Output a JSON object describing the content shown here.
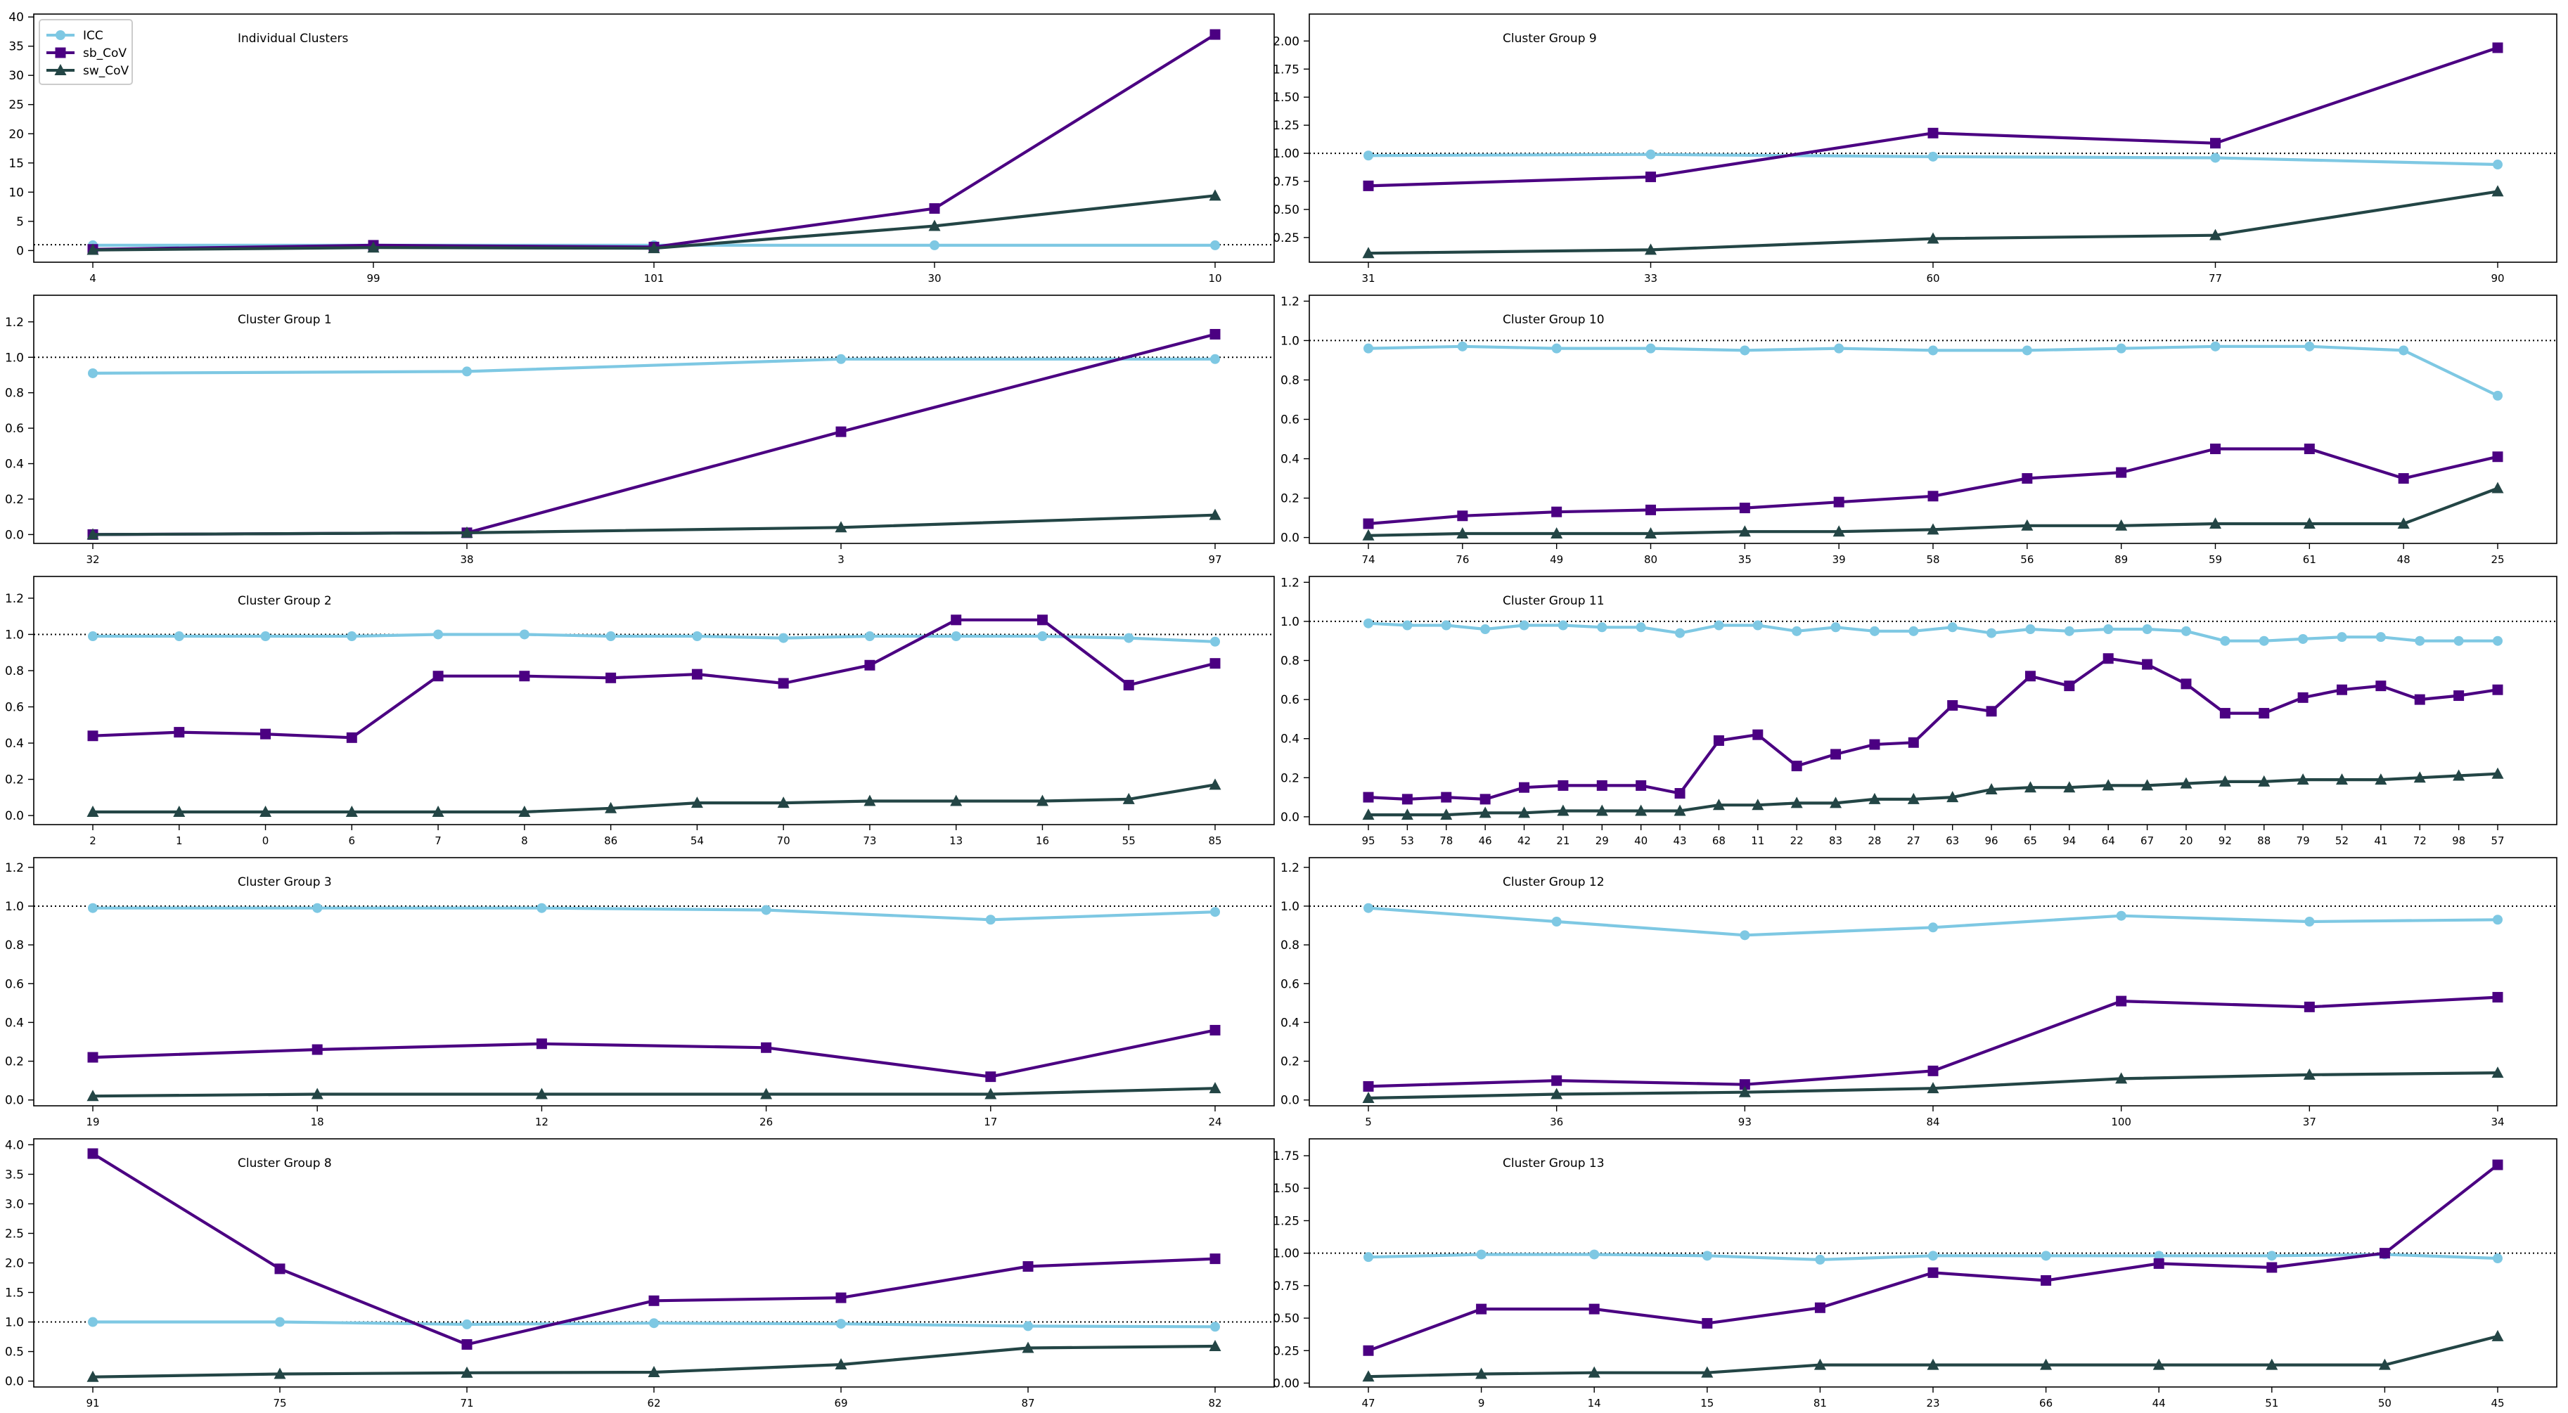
{
  "colors": {
    "ICC": "#7ec8e3",
    "sb_CoV": "#4b0082",
    "sw_CoV": "#234545",
    "axis": "#000000",
    "ref_line": "#000000"
  },
  "legend": [
    {
      "name": "ICC",
      "marker": "circle"
    },
    {
      "name": "sb_CoV",
      "marker": "square"
    },
    {
      "name": "sw_CoV",
      "marker": "triangle"
    }
  ],
  "chart_data": [
    {
      "type": "line",
      "title": "Individual Clusters",
      "reference_line": 1.0,
      "categories": [
        "4",
        "99",
        "101",
        "30",
        "10"
      ],
      "ylim": [
        -2.0,
        40.5
      ],
      "yticks": [
        "0",
        "5",
        "10",
        "15",
        "20",
        "25",
        "30",
        "35",
        "40"
      ],
      "ytick_values": [
        0,
        5,
        10,
        15,
        20,
        25,
        30,
        35,
        40
      ],
      "series": [
        {
          "name": "ICC",
          "values": [
            0.9,
            0.9,
            0.9,
            0.9,
            0.9
          ]
        },
        {
          "name": "sb_CoV",
          "values": [
            0.2,
            0.9,
            0.6,
            7.2,
            37.0
          ]
        },
        {
          "name": "sw_CoV",
          "values": [
            0.1,
            0.5,
            0.4,
            4.2,
            9.4
          ]
        }
      ]
    },
    {
      "type": "line",
      "title": "Cluster Group 9",
      "reference_line": 1.0,
      "categories": [
        "31",
        "33",
        "60",
        "77",
        "90"
      ],
      "ylim": [
        0.03,
        2.24
      ],
      "yticks": [
        "0.25",
        "0.50",
        "0.75",
        "1.00",
        "1.25",
        "1.50",
        "1.75",
        "2.00"
      ],
      "ytick_values": [
        0.25,
        0.5,
        0.75,
        1.0,
        1.25,
        1.5,
        1.75,
        2.0
      ],
      "series": [
        {
          "name": "ICC",
          "values": [
            0.98,
            0.99,
            0.97,
            0.96,
            0.9
          ]
        },
        {
          "name": "sb_CoV",
          "values": [
            0.71,
            0.79,
            1.18,
            1.09,
            1.94
          ]
        },
        {
          "name": "sw_CoV",
          "values": [
            0.11,
            0.14,
            0.24,
            0.27,
            0.66
          ]
        }
      ]
    },
    {
      "type": "line",
      "title": "Cluster Group 1",
      "reference_line": 1.0,
      "categories": [
        "32",
        "38",
        "3",
        "97"
      ],
      "ylim": [
        -0.05,
        1.35
      ],
      "yticks": [
        "0.0",
        "0.2",
        "0.4",
        "0.6",
        "0.8",
        "1.0",
        "1.2"
      ],
      "ytick_values": [
        0,
        0.2,
        0.4,
        0.6,
        0.8,
        1.0,
        1.2
      ],
      "series": [
        {
          "name": "ICC",
          "values": [
            0.91,
            0.92,
            0.99,
            0.99
          ]
        },
        {
          "name": "sb_CoV",
          "values": [
            0.0,
            0.01,
            0.58,
            1.13
          ]
        },
        {
          "name": "sw_CoV",
          "values": [
            0.0,
            0.01,
            0.04,
            0.11
          ]
        }
      ]
    },
    {
      "type": "line",
      "title": "Cluster Group 10",
      "reference_line": 1.0,
      "categories": [
        "74",
        "76",
        "49",
        "80",
        "35",
        "39",
        "58",
        "56",
        "89",
        "59",
        "61",
        "48",
        "25"
      ],
      "ylim": [
        -0.03,
        1.23
      ],
      "yticks": [
        "0.0",
        "0.2",
        "0.4",
        "0.6",
        "0.8",
        "1.0",
        "1.2"
      ],
      "ytick_values": [
        0,
        0.2,
        0.4,
        0.6,
        0.8,
        1.0,
        1.2
      ],
      "series": [
        {
          "name": "ICC",
          "values": [
            0.96,
            0.97,
            0.96,
            0.96,
            0.95,
            0.96,
            0.95,
            0.95,
            0.96,
            0.97,
            0.97,
            0.95,
            0.72
          ]
        },
        {
          "name": "sb_CoV",
          "values": [
            0.07,
            0.11,
            0.13,
            0.14,
            0.15,
            0.18,
            0.21,
            0.3,
            0.33,
            0.45,
            0.45,
            0.3,
            0.41
          ]
        },
        {
          "name": "sw_CoV",
          "values": [
            0.01,
            0.02,
            0.02,
            0.02,
            0.03,
            0.03,
            0.04,
            0.06,
            0.06,
            0.07,
            0.07,
            0.07,
            0.25
          ]
        }
      ]
    },
    {
      "type": "line",
      "title": "Cluster Group 2",
      "reference_line": 1.0,
      "categories": [
        "2",
        "1",
        "0",
        "6",
        "7",
        "8",
        "86",
        "54",
        "70",
        "73",
        "13",
        "16",
        "55",
        "85"
      ],
      "ylim": [
        -0.05,
        1.32
      ],
      "yticks": [
        "0.0",
        "0.2",
        "0.4",
        "0.6",
        "0.8",
        "1.0",
        "1.2"
      ],
      "ytick_values": [
        0,
        0.2,
        0.4,
        0.6,
        0.8,
        1.0,
        1.2
      ],
      "series": [
        {
          "name": "ICC",
          "values": [
            0.99,
            0.99,
            0.99,
            0.99,
            1.0,
            1.0,
            0.99,
            0.99,
            0.98,
            0.99,
            0.99,
            0.99,
            0.98,
            0.96
          ]
        },
        {
          "name": "sb_CoV",
          "values": [
            0.44,
            0.46,
            0.45,
            0.43,
            0.77,
            0.77,
            0.76,
            0.78,
            0.73,
            0.83,
            1.08,
            1.08,
            0.72,
            0.84
          ]
        },
        {
          "name": "sw_CoV",
          "values": [
            0.02,
            0.02,
            0.02,
            0.02,
            0.02,
            0.02,
            0.04,
            0.07,
            0.07,
            0.08,
            0.08,
            0.08,
            0.09,
            0.17
          ]
        }
      ]
    },
    {
      "type": "line",
      "title": "Cluster Group 11",
      "reference_line": 1.0,
      "categories": [
        "95",
        "53",
        "78",
        "46",
        "42",
        "21",
        "29",
        "40",
        "43",
        "68",
        "11",
        "22",
        "83",
        "28",
        "27",
        "63",
        "96",
        "65",
        "94",
        "64",
        "67",
        "20",
        "92",
        "88",
        "79",
        "52",
        "41",
        "72",
        "98",
        "57"
      ],
      "ylim": [
        -0.04,
        1.23
      ],
      "yticks": [
        "0.0",
        "0.2",
        "0.4",
        "0.6",
        "0.8",
        "1.0",
        "1.2"
      ],
      "ytick_values": [
        0,
        0.2,
        0.4,
        0.6,
        0.8,
        1.0,
        1.2
      ],
      "series": [
        {
          "name": "ICC",
          "values": [
            0.99,
            0.98,
            0.98,
            0.96,
            0.98,
            0.98,
            0.97,
            0.97,
            0.94,
            0.98,
            0.98,
            0.95,
            0.97,
            0.95,
            0.95,
            0.97,
            0.94,
            0.96,
            0.95,
            0.96,
            0.96,
            0.95,
            0.9,
            0.9,
            0.91,
            0.92,
            0.92,
            0.9,
            0.9,
            0.9
          ]
        },
        {
          "name": "sb_CoV",
          "values": [
            0.1,
            0.09,
            0.1,
            0.09,
            0.15,
            0.16,
            0.16,
            0.16,
            0.12,
            0.39,
            0.42,
            0.26,
            0.32,
            0.37,
            0.38,
            0.57,
            0.54,
            0.72,
            0.67,
            0.81,
            0.78,
            0.68,
            0.53,
            0.53,
            0.61,
            0.65,
            0.67,
            0.6,
            0.62,
            0.65
          ]
        },
        {
          "name": "sw_CoV",
          "values": [
            0.01,
            0.01,
            0.01,
            0.02,
            0.02,
            0.03,
            0.03,
            0.03,
            0.03,
            0.06,
            0.06,
            0.07,
            0.07,
            0.09,
            0.09,
            0.1,
            0.14,
            0.15,
            0.15,
            0.16,
            0.16,
            0.17,
            0.18,
            0.18,
            0.19,
            0.19,
            0.19,
            0.2,
            0.21,
            0.22
          ]
        }
      ]
    },
    {
      "type": "line",
      "title": "Cluster Group 3",
      "reference_line": 1.0,
      "categories": [
        "19",
        "18",
        "12",
        "26",
        "17",
        "24"
      ],
      "ylim": [
        -0.03,
        1.25
      ],
      "yticks": [
        "0.0",
        "0.2",
        "0.4",
        "0.6",
        "0.8",
        "1.0",
        "1.2"
      ],
      "ytick_values": [
        0,
        0.2,
        0.4,
        0.6,
        0.8,
        1.0,
        1.2
      ],
      "series": [
        {
          "name": "ICC",
          "values": [
            0.99,
            0.99,
            0.99,
            0.98,
            0.93,
            0.97
          ]
        },
        {
          "name": "sb_CoV",
          "values": [
            0.22,
            0.26,
            0.29,
            0.27,
            0.12,
            0.36
          ]
        },
        {
          "name": "sw_CoV",
          "values": [
            0.02,
            0.03,
            0.03,
            0.03,
            0.03,
            0.06
          ]
        }
      ]
    },
    {
      "type": "line",
      "title": "Cluster Group 12",
      "reference_line": 1.0,
      "categories": [
        "5",
        "36",
        "93",
        "84",
        "100",
        "37",
        "34"
      ],
      "ylim": [
        -0.03,
        1.25
      ],
      "yticks": [
        "0.0",
        "0.2",
        "0.4",
        "0.6",
        "0.8",
        "1.0",
        "1.2"
      ],
      "ytick_values": [
        0,
        0.2,
        0.4,
        0.6,
        0.8,
        1.0,
        1.2
      ],
      "series": [
        {
          "name": "ICC",
          "values": [
            0.99,
            0.92,
            0.85,
            0.89,
            0.95,
            0.92,
            0.93
          ]
        },
        {
          "name": "sb_CoV",
          "values": [
            0.07,
            0.1,
            0.08,
            0.15,
            0.51,
            0.48,
            0.53
          ]
        },
        {
          "name": "sw_CoV",
          "values": [
            0.01,
            0.03,
            0.04,
            0.06,
            0.11,
            0.13,
            0.14
          ]
        }
      ]
    },
    {
      "type": "line",
      "title": "Cluster Group 8",
      "reference_line": 1.0,
      "categories": [
        "91",
        "75",
        "71",
        "62",
        "69",
        "87",
        "82"
      ],
      "ylim": [
        -0.1,
        4.1
      ],
      "yticks": [
        "0.0",
        "0.5",
        "1.0",
        "1.5",
        "2.0",
        "2.5",
        "3.0",
        "3.5",
        "4.0"
      ],
      "ytick_values": [
        0,
        0.5,
        1.0,
        1.5,
        2.0,
        2.5,
        3.0,
        3.5,
        4.0
      ],
      "series": [
        {
          "name": "ICC",
          "values": [
            1.0,
            1.0,
            0.96,
            0.98,
            0.97,
            0.93,
            0.92
          ]
        },
        {
          "name": "sb_CoV",
          "values": [
            3.85,
            1.9,
            0.62,
            1.36,
            1.41,
            1.94,
            2.07
          ]
        },
        {
          "name": "sw_CoV",
          "values": [
            0.07,
            0.12,
            0.14,
            0.15,
            0.28,
            0.56,
            0.59
          ]
        }
      ]
    },
    {
      "type": "line",
      "title": "Cluster Group 13",
      "reference_line": 1.0,
      "categories": [
        "47",
        "9",
        "14",
        "15",
        "81",
        "23",
        "66",
        "44",
        "51",
        "50",
        "45"
      ],
      "ylim": [
        -0.03,
        1.88
      ],
      "yticks": [
        "0.00",
        "0.25",
        "0.50",
        "0.75",
        "1.00",
        "1.25",
        "1.50",
        "1.75"
      ],
      "ytick_values": [
        0,
        0.25,
        0.5,
        0.75,
        1.0,
        1.25,
        1.5,
        1.75
      ],
      "series": [
        {
          "name": "ICC",
          "values": [
            0.97,
            0.99,
            0.99,
            0.98,
            0.95,
            0.98,
            0.98,
            0.98,
            0.98,
            0.99,
            0.96
          ]
        },
        {
          "name": "sb_CoV",
          "values": [
            0.25,
            0.57,
            0.57,
            0.46,
            0.58,
            0.85,
            0.79,
            0.92,
            0.89,
            1.0,
            1.68
          ]
        },
        {
          "name": "sw_CoV",
          "values": [
            0.05,
            0.07,
            0.08,
            0.08,
            0.14,
            0.14,
            0.14,
            0.14,
            0.14,
            0.14,
            0.36
          ]
        }
      ]
    }
  ]
}
